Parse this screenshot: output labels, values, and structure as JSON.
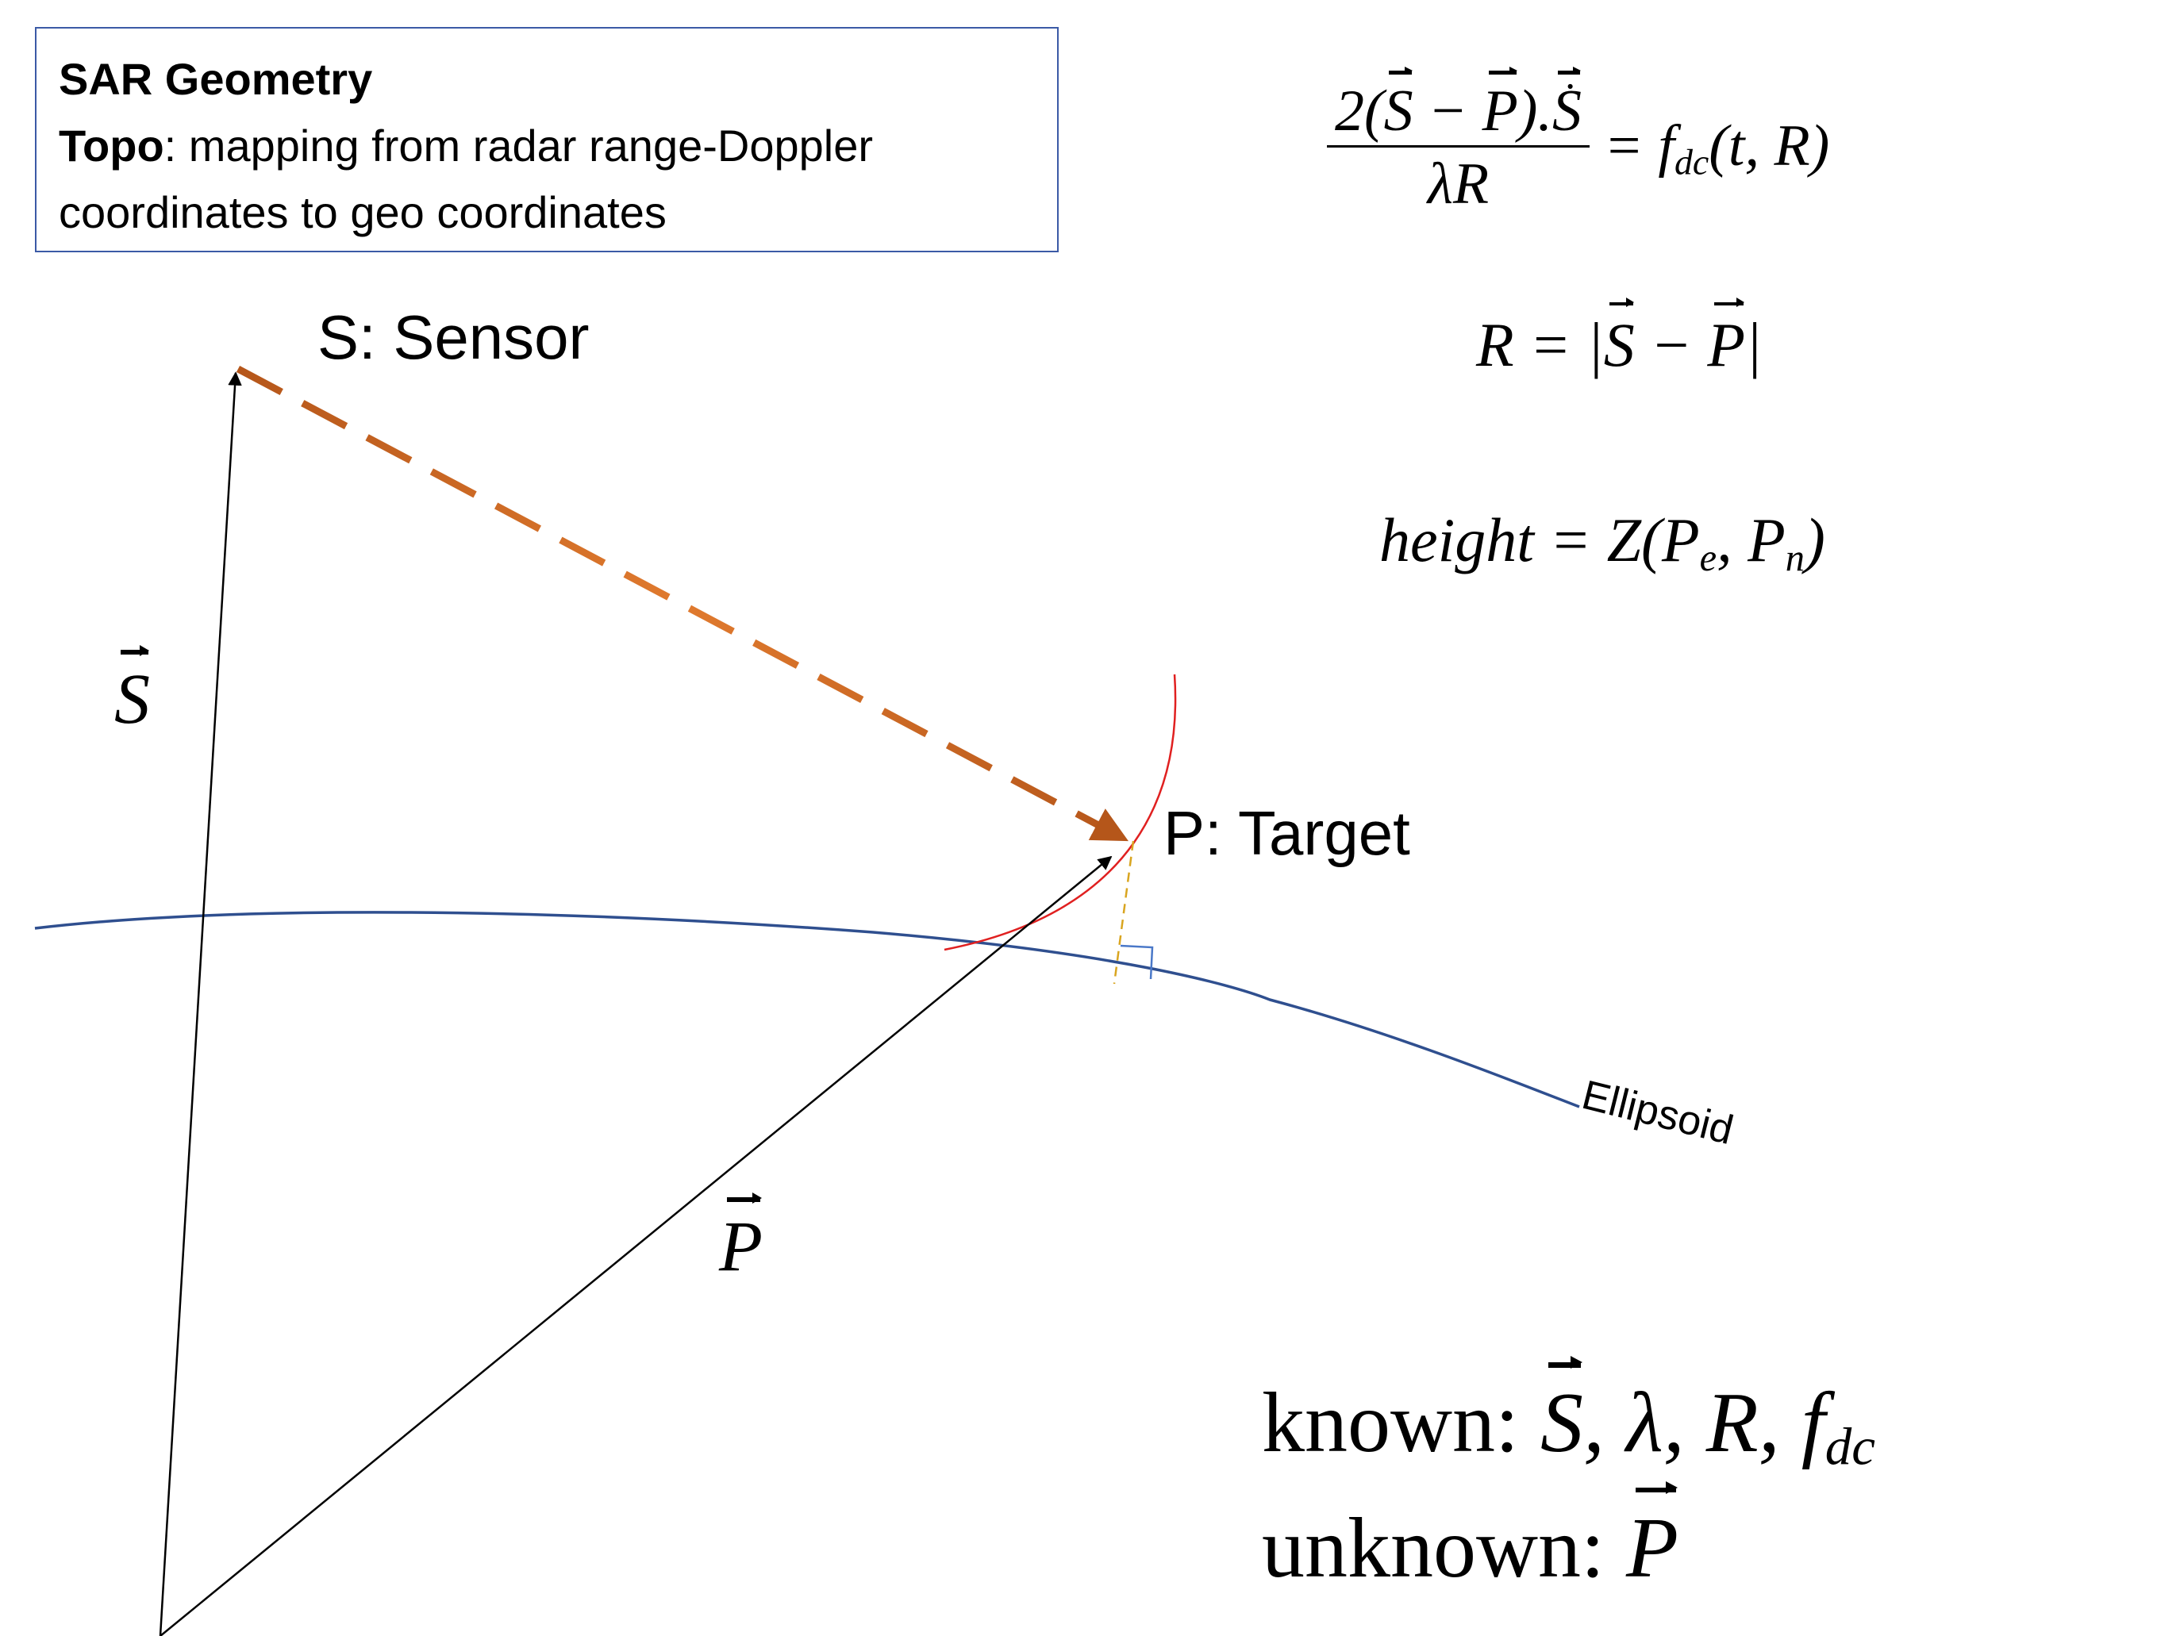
{
  "info_box": {
    "title": "SAR Geometry",
    "topo_label": "Topo",
    "description_line1": ": mapping from radar range-Doppler",
    "description_line2": "coordinates to geo coordinates"
  },
  "labels": {
    "sensor": "S: Sensor",
    "target": "P: Target",
    "ellipsoid": "Ellipsoid",
    "s_vector": "S",
    "p_vector": "P"
  },
  "equations": {
    "doppler_numerator_prefix": "2(",
    "doppler_S": "S",
    "doppler_minus": " − ",
    "doppler_P": "P",
    "doppler_close": ").",
    "doppler_Sdot": "S",
    "doppler_denominator": "λR",
    "doppler_rhs": "= f",
    "doppler_rhs_sub": "dc",
    "doppler_rhs_args": "(t, R)",
    "range_lhs": "R = |",
    "range_S": "S",
    "range_minus": " − ",
    "range_P": "P",
    "range_close": "|",
    "height_text": "height = Z(P",
    "height_sub_e": "e",
    "height_mid": ", P",
    "height_sub_n": "n",
    "height_close": ")"
  },
  "known_unknown": {
    "known_label": "known:",
    "known_S": "S",
    "known_rest": ", λ, R, f",
    "known_sub": "dc",
    "unknown_label": "unknown:",
    "unknown_P": "P"
  },
  "colors": {
    "los_dark": "#b5561a",
    "los_light": "#e07a2e",
    "ellipsoid": "#2f4f8f",
    "range_circle": "#e02020",
    "height_dashed": "#d9a520",
    "box_border": "#3b5aa6"
  }
}
